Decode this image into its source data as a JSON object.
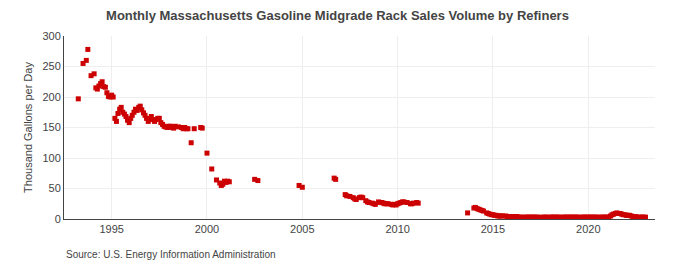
{
  "chart_data": {
    "type": "scatter",
    "title": "Monthly Massachusetts Gasoline Midgrade Rack Sales Volume by Refiners",
    "ylabel": "Thousand Gallons per Day",
    "source": "Source: U.S. Energy Information Administration",
    "color": "#cc0000",
    "marker": "square",
    "grid": true,
    "xlim": [
      1992.5,
      2023.5
    ],
    "xticks": [
      1995,
      2000,
      2005,
      2010,
      2015,
      2020
    ],
    "ylim": [
      0,
      300
    ],
    "yticks": [
      0,
      50,
      100,
      150,
      200,
      250,
      300
    ],
    "x": [
      1993.25,
      1993.5,
      1993.67,
      1993.75,
      1993.92,
      1994.08,
      1994.17,
      1994.25,
      1994.33,
      1994.42,
      1994.5,
      1994.58,
      1994.67,
      1994.75,
      1994.83,
      1994.92,
      1995.0,
      1995.08,
      1995.17,
      1995.25,
      1995.33,
      1995.42,
      1995.5,
      1995.58,
      1995.67,
      1995.75,
      1995.83,
      1995.92,
      1996.0,
      1996.08,
      1996.17,
      1996.25,
      1996.33,
      1996.42,
      1996.5,
      1996.58,
      1996.67,
      1996.75,
      1996.83,
      1996.92,
      1997.0,
      1997.08,
      1997.17,
      1997.25,
      1997.33,
      1997.42,
      1997.5,
      1997.58,
      1997.67,
      1997.75,
      1997.83,
      1997.92,
      1998.0,
      1998.08,
      1998.17,
      1998.25,
      1998.33,
      1998.5,
      1998.67,
      1998.75,
      1998.83,
      1998.92,
      1999.0,
      1999.17,
      1999.33,
      1999.67,
      1999.75,
      2000.0,
      2000.25,
      2000.5,
      2000.67,
      2000.75,
      2000.83,
      2000.92,
      2001.0,
      2001.08,
      2001.17,
      2002.5,
      2002.67,
      2004.83,
      2005.0,
      2006.67,
      2006.75,
      2007.25,
      2007.33,
      2007.5,
      2007.67,
      2007.75,
      2007.83,
      2008.0,
      2008.08,
      2008.17,
      2008.33,
      2008.42,
      2008.5,
      2008.67,
      2008.75,
      2008.83,
      2009.0,
      2009.08,
      2009.17,
      2009.25,
      2009.33,
      2009.42,
      2009.5,
      2009.67,
      2009.75,
      2009.83,
      2009.92,
      2010.0,
      2010.08,
      2010.17,
      2010.25,
      2010.33,
      2010.5,
      2010.67,
      2010.75,
      2010.83,
      2011.0,
      2011.08,
      2013.67,
      2014.0,
      2014.08,
      2014.17,
      2014.25,
      2014.33,
      2014.42,
      2014.5,
      2014.67,
      2014.75,
      2014.83,
      2014.92,
      2015.0,
      2015.08,
      2015.17,
      2015.25,
      2015.33,
      2015.42,
      2015.5,
      2015.67,
      2015.75,
      2015.83,
      2015.92,
      2016.0,
      2016.08,
      2016.17,
      2016.25,
      2016.33,
      2016.42,
      2016.5,
      2016.67,
      2016.75,
      2016.83,
      2016.92,
      2017.0,
      2017.08,
      2017.17,
      2017.25,
      2017.33,
      2017.5,
      2017.67,
      2017.75,
      2017.83,
      2018.0,
      2018.08,
      2018.17,
      2018.25,
      2018.33,
      2018.42,
      2018.5,
      2018.67,
      2018.75,
      2018.83,
      2018.92,
      2019.0,
      2019.08,
      2019.17,
      2019.25,
      2019.33,
      2019.42,
      2019.5,
      2019.67,
      2019.75,
      2019.83,
      2019.92,
      2020.0,
      2020.08,
      2020.17,
      2020.25,
      2020.33,
      2020.42,
      2020.5,
      2020.67,
      2020.75,
      2020.83,
      2020.92,
      2021.0,
      2021.08,
      2021.17,
      2021.25,
      2021.33,
      2021.42,
      2021.5,
      2021.67,
      2021.75,
      2021.83,
      2021.92,
      2022.0,
      2022.08,
      2022.17,
      2022.25,
      2022.33,
      2022.5,
      2022.67,
      2022.75,
      2022.83,
      2022.92,
      2023.0
    ],
    "values": [
      197,
      255,
      260,
      278,
      235,
      238,
      215,
      213,
      218,
      222,
      225,
      217,
      216,
      207,
      201,
      200,
      203,
      200,
      165,
      160,
      173,
      180,
      183,
      175,
      172,
      168,
      162,
      158,
      165,
      170,
      175,
      180,
      178,
      183,
      185,
      179,
      174,
      170,
      165,
      160,
      163,
      168,
      163,
      160,
      163,
      165,
      165,
      158,
      155,
      152,
      151,
      150,
      152,
      152,
      150,
      149,
      152,
      151,
      150,
      148,
      150,
      148,
      148,
      125,
      148,
      150,
      149,
      108,
      82,
      64,
      59,
      55,
      57,
      62,
      60,
      62,
      61,
      65,
      63,
      55,
      52,
      67,
      65,
      40,
      38,
      37,
      35,
      33,
      32,
      35,
      36,
      35,
      30,
      28,
      27,
      26,
      25,
      24,
      28,
      27,
      27,
      26,
      25,
      25,
      25,
      24,
      23,
      24,
      23,
      25,
      26,
      27,
      28,
      28,
      27,
      25,
      25,
      26,
      27,
      26,
      10,
      18,
      19,
      17,
      16,
      15,
      14,
      13,
      10,
      9,
      8,
      7,
      7,
      6,
      6,
      5,
      5,
      5,
      5,
      5,
      4,
      4,
      4,
      4,
      4,
      4,
      4,
      3,
      3,
      3,
      3,
      3,
      3,
      3,
      3,
      3,
      3,
      3,
      3,
      3,
      3,
      3,
      3,
      3,
      3,
      3,
      3,
      3,
      3,
      3,
      3,
      3,
      3,
      3,
      3,
      3,
      3,
      3,
      3,
      3,
      3,
      3,
      3,
      3,
      3,
      3,
      3,
      3,
      3,
      3,
      3,
      3,
      3,
      3,
      3,
      3,
      3,
      3,
      5,
      7,
      8,
      9,
      10,
      9,
      8,
      7,
      7,
      6,
      6,
      6,
      5,
      4,
      4,
      3,
      3,
      3,
      3,
      3
    ]
  }
}
